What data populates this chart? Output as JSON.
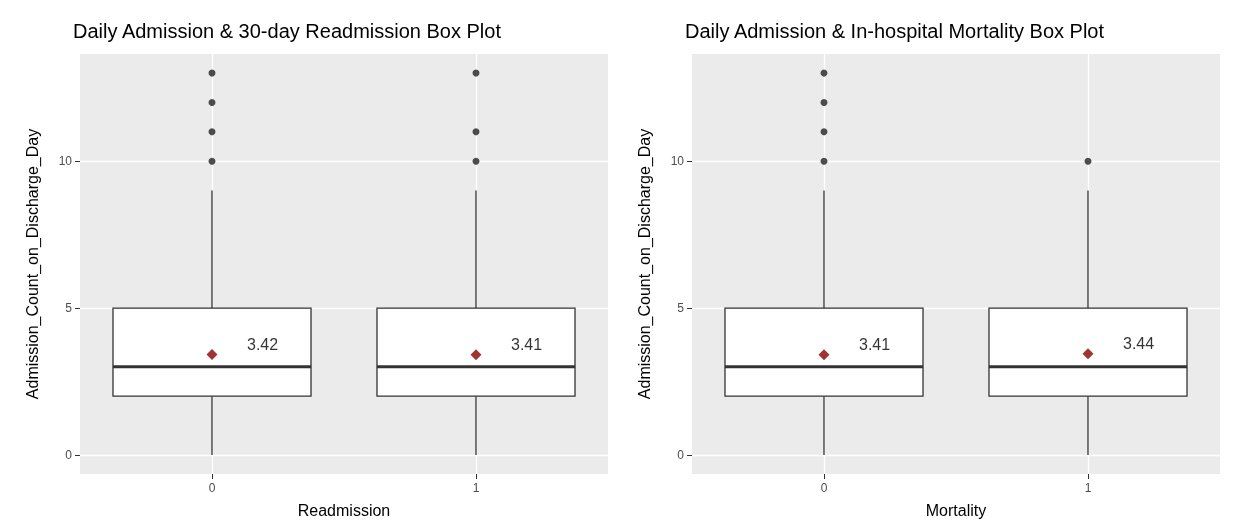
{
  "chart_data": [
    {
      "type": "box",
      "title": "Daily Admission & 30-day Readmission Box Plot",
      "xlabel": "Readmission",
      "ylabel": "Admission_Count_on_Discharge_Day",
      "categories": [
        "0",
        "1"
      ],
      "boxes": [
        {
          "low": 0,
          "q1": 2,
          "median": 3,
          "q3": 5,
          "high": 9,
          "mean": 3.42,
          "outliers": [
            10,
            11,
            12,
            13
          ]
        },
        {
          "low": 0,
          "q1": 2,
          "median": 3,
          "q3": 5,
          "high": 9,
          "mean": 3.41,
          "outliers": [
            10,
            11,
            13
          ]
        }
      ],
      "ylim": [
        -0.65,
        13.65
      ],
      "yticks": [
        0,
        5,
        10
      ],
      "grid": true,
      "annotations": [
        "3.42",
        "3.41"
      ]
    },
    {
      "type": "box",
      "title": "Daily Admission & In-hospital Mortality Box Plot",
      "xlabel": "Mortality",
      "ylabel": "Admission_Count_on_Discharge_Day",
      "categories": [
        "0",
        "1"
      ],
      "boxes": [
        {
          "low": 0,
          "q1": 2,
          "median": 3,
          "q3": 5,
          "high": 9,
          "mean": 3.41,
          "outliers": [
            10,
            11,
            12,
            13
          ]
        },
        {
          "low": 0,
          "q1": 2,
          "median": 3,
          "q3": 5,
          "high": 9,
          "mean": 3.44,
          "outliers": [
            10
          ]
        }
      ],
      "ylim": [
        -0.65,
        13.65
      ],
      "yticks": [
        0,
        5,
        10
      ],
      "grid": true,
      "annotations": [
        "3.41",
        "3.44"
      ]
    }
  ]
}
